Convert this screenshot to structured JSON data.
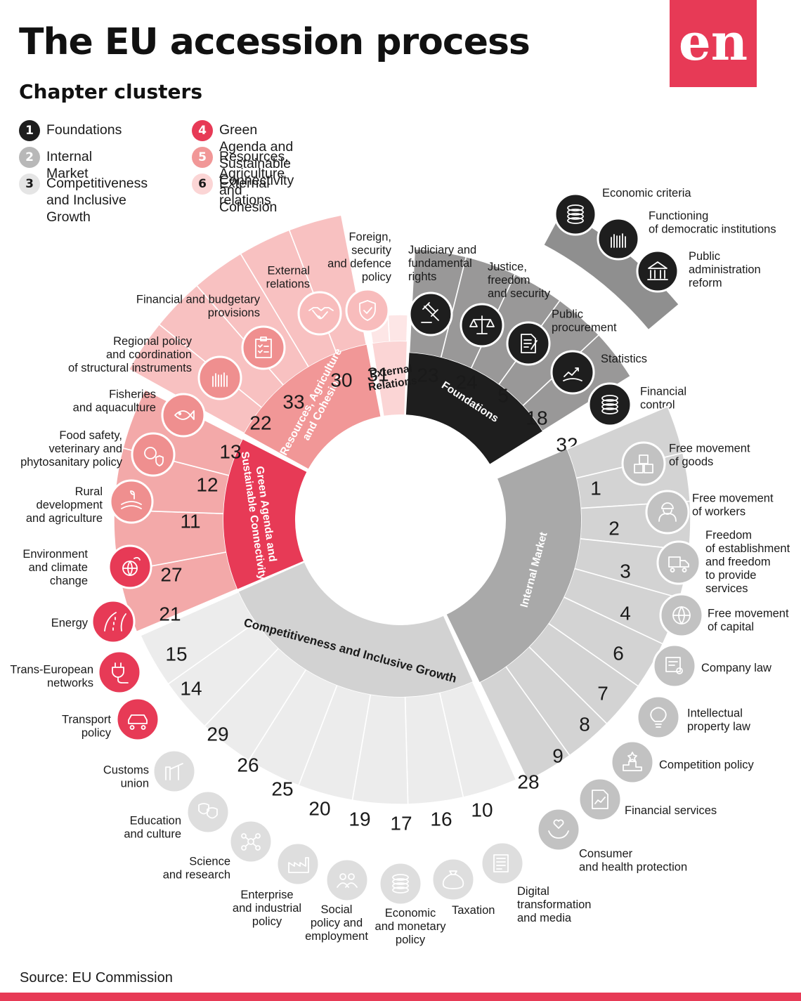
{
  "title": "The EU accession process",
  "subtitle": "Chapter clusters",
  "logo_text": "en",
  "source": "Source: EU Commission",
  "colors": {
    "brand": "#e73a56",
    "foundations": "#1e1e1e",
    "foundations_light": "#999898",
    "internal": "#b8b8b8",
    "competitiveness": "#e5e5e5",
    "green": "#e73a56",
    "resources": "#f19797",
    "external": "#fbd5d5"
  },
  "legend": [
    {
      "number": "1",
      "label": "Foundations"
    },
    {
      "number": "2",
      "label": "Internal Market"
    },
    {
      "number": "3",
      "label": "Competitiveness\nand Inclusive Growth"
    },
    {
      "number": "4",
      "label": "Green Agenda and Sustainable Connectivity"
    },
    {
      "number": "5",
      "label": "Resources, Agriculture and Cohesion"
    },
    {
      "number": "6",
      "label": "External relations"
    }
  ],
  "fundamentals": [
    {
      "label": "Economic criteria",
      "icon": "coins-icon"
    },
    {
      "label": "Functioning\nof democratic institutions",
      "icon": "raised-hands-icon"
    },
    {
      "label": "Public\nadministration\nreform",
      "icon": "institution-icon"
    }
  ],
  "clusters": [
    {
      "key": "foundations",
      "name": "Foundations",
      "chapters": [
        {
          "number": "23",
          "label": "Judiciary and\nfundamental\nrights",
          "icon": "gavel-icon"
        },
        {
          "number": "24",
          "label": "Justice,\nfreedom\nand security",
          "icon": "scales-icon"
        },
        {
          "number": "5",
          "label": "Public\nprocurement",
          "icon": "contract-icon"
        },
        {
          "number": "18",
          "label": "Statistics",
          "icon": "growth-chart-icon"
        },
        {
          "number": "32",
          "label": "Financial\ncontrol",
          "icon": "coins-icon"
        }
      ]
    },
    {
      "key": "internal",
      "name": "Internal Market",
      "chapters": [
        {
          "number": "1",
          "label": "Free movement\nof goods",
          "icon": "boxes-icon"
        },
        {
          "number": "2",
          "label": "Free movement\nof workers",
          "icon": "worker-icon"
        },
        {
          "number": "3",
          "label": "Freedom\nof establishment\nand freedom\nto provide\nservices",
          "icon": "delivery-truck-icon"
        },
        {
          "number": "4",
          "label": "Free movement\nof capital",
          "icon": "globe-network-icon"
        },
        {
          "number": "6",
          "label": "Company law",
          "icon": "certificate-icon"
        },
        {
          "number": "7",
          "label": "Intellectual\nproperty law",
          "icon": "lightbulb-icon"
        },
        {
          "number": "8",
          "label": "Competition policy",
          "icon": "podium-icon"
        },
        {
          "number": "9",
          "label": "Financial services",
          "icon": "finance-report-icon"
        },
        {
          "number": "28",
          "label": "Consumer\nand health protection",
          "icon": "heart-hands-icon"
        }
      ]
    },
    {
      "key": "competitiveness",
      "name": "Competitiveness and Inclusive Growth",
      "chapters": [
        {
          "number": "10",
          "label": "Digital\ntransformation\nand media",
          "icon": "newspaper-icon"
        },
        {
          "number": "16",
          "label": "Taxation",
          "icon": "tax-bag-icon"
        },
        {
          "number": "17",
          "label": "Economic\nand monetary\npolicy",
          "icon": "coins-icon"
        },
        {
          "number": "19",
          "label": "Social\npolicy and\nemployment",
          "icon": "people-icon"
        },
        {
          "number": "20",
          "label": "Enterprise\nand industrial\npolicy",
          "icon": "factory-icon"
        },
        {
          "number": "25",
          "label": "Science\nand research",
          "icon": "molecule-icon"
        },
        {
          "number": "26",
          "label": "Education\nand culture",
          "icon": "theater-masks-icon"
        },
        {
          "number": "29",
          "label": "Customs\nunion",
          "icon": "barrier-icon"
        }
      ]
    },
    {
      "key": "green",
      "name": "Green Agenda and\nSustainable Connectivity",
      "chapters": [
        {
          "number": "14",
          "label": "Transport\npolicy",
          "icon": "car-icon"
        },
        {
          "number": "15",
          "label": "Energy",
          "icon": "plug-icon"
        },
        {
          "number": "21",
          "label": "Trans-European\nnetworks",
          "icon": "road-icon"
        },
        {
          "number": "27",
          "label": "Environment\nand climate\nchange",
          "icon": "earth-leaf-icon"
        }
      ]
    },
    {
      "key": "resources",
      "name": "Resources, Agriculture\nand Cohesion",
      "chapters": [
        {
          "number": "11",
          "label": "Rural\ndevelopment\nand agriculture",
          "icon": "field-icon"
        },
        {
          "number": "12",
          "label": "Food safety,\nveterinary and\nphytosanitary policy",
          "icon": "food-safety-icon"
        },
        {
          "number": "13",
          "label": "Fisheries\nand aquaculture",
          "icon": "fish-icon"
        },
        {
          "number": "22",
          "label": "Regional policy\nand coordination\nof structural instruments",
          "icon": "raised-hands-icon"
        },
        {
          "number": "33",
          "label": "Financial and budgetary\nprovisions",
          "icon": "clipboard-icon"
        }
      ]
    },
    {
      "key": "external",
      "name": "External\nRelations",
      "chapters": [
        {
          "number": "30",
          "label": "External\nrelations",
          "icon": "handshake-icon"
        },
        {
          "number": "31",
          "label": "Foreign,\nsecurity\nand defence\npolicy",
          "icon": "shield-icon"
        }
      ]
    }
  ]
}
